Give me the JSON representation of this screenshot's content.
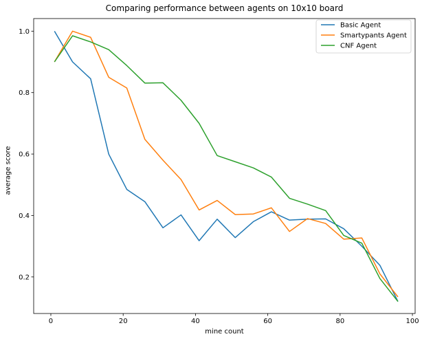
{
  "chart_data": {
    "type": "line",
    "title": "Comparing performance between agents on 10x10 board",
    "xlabel": "mine count",
    "ylabel": "average score",
    "xlim": [
      -4.75,
      100.75
    ],
    "ylim": [
      0.081,
      1.041
    ],
    "xticks": [
      0,
      20,
      40,
      60,
      80,
      100
    ],
    "yticks": [
      0.2,
      0.4,
      0.6,
      0.8,
      1.0
    ],
    "xtick_labels": [
      "0",
      "20",
      "40",
      "60",
      "80",
      "100"
    ],
    "ytick_labels": [
      "0.2",
      "0.4",
      "0.6",
      "0.8",
      "1.0"
    ],
    "grid": false,
    "legend_position": "top-right",
    "x": [
      1,
      6,
      11,
      16,
      21,
      26,
      31,
      36,
      41,
      46,
      51,
      56,
      61,
      66,
      71,
      76,
      81,
      86,
      91,
      96
    ],
    "series": [
      {
        "name": "Basic Agent",
        "color": "#1f77b4",
        "values": [
          1.0,
          0.9,
          0.845,
          0.6,
          0.485,
          0.445,
          0.36,
          0.402,
          0.318,
          0.388,
          0.328,
          0.38,
          0.412,
          0.385,
          0.388,
          0.389,
          0.357,
          0.3,
          0.238,
          0.12
        ]
      },
      {
        "name": "Smartypants Agent",
        "color": "#ff7f0e",
        "values": [
          0.9,
          1.0,
          0.98,
          0.85,
          0.815,
          0.648,
          0.58,
          0.517,
          0.418,
          0.449,
          0.403,
          0.405,
          0.425,
          0.348,
          0.39,
          0.374,
          0.323,
          0.327,
          0.21,
          0.135
        ]
      },
      {
        "name": "CNF Agent",
        "color": "#2ca02c",
        "values": [
          0.9,
          0.985,
          0.965,
          0.94,
          0.888,
          0.831,
          0.832,
          0.775,
          0.7,
          0.595,
          0.575,
          0.555,
          0.525,
          0.456,
          0.437,
          0.416,
          0.335,
          0.31,
          0.195,
          0.12
        ]
      }
    ]
  }
}
